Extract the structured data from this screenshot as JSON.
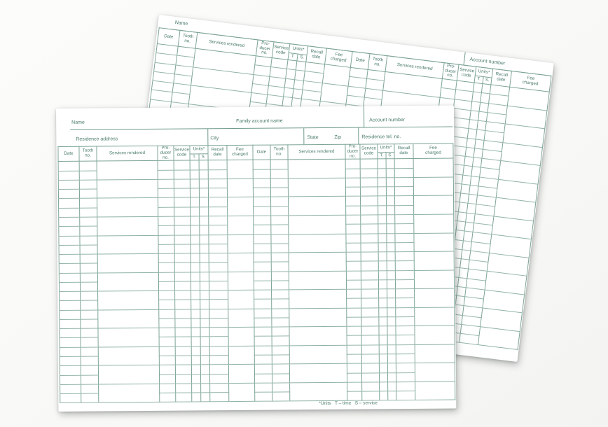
{
  "colors": {
    "card": "#ffffff",
    "grid_line": "#7da496",
    "row_line": "#95b6aa",
    "text": "#497a6c",
    "page_background": "#f8f8f6"
  },
  "front_card": {
    "name_label": "Name",
    "family_account_label": "Family account name",
    "account_number_label": "Account number",
    "residence_address_label": "Residence address",
    "city_label": "City",
    "state_label": "State",
    "zip_label": "Zip",
    "residence_tel_label": "Residence tel. no.",
    "footnote": "*Units   T – time   S – service",
    "body_rows": 26
  },
  "back_card": {
    "name_label": "Name",
    "account_number_label": "Account number",
    "body_rows": 28
  },
  "table": {
    "units_header": "Units*",
    "columns": [
      {
        "key": "date",
        "lines": [
          "Date"
        ]
      },
      {
        "key": "tooth-no",
        "lines": [
          "Tooth",
          "no."
        ]
      },
      {
        "key": "services-rendered",
        "lines": [
          "Services rendered"
        ],
        "tall": true
      },
      {
        "key": "producer-no",
        "lines": [
          "Pro-",
          "ducer",
          "no."
        ]
      },
      {
        "key": "service-code",
        "lines": [
          "Service",
          "code"
        ]
      },
      {
        "key": "units-t",
        "lines": [
          "T."
        ],
        "units": true
      },
      {
        "key": "units-s",
        "lines": [
          "S."
        ],
        "units": true
      },
      {
        "key": "recall-date",
        "lines": [
          "Recall",
          "date"
        ]
      },
      {
        "key": "fee-charged",
        "lines": [
          "Fee",
          "charged"
        ],
        "tall": true
      }
    ],
    "half_widths": [
      [
        30,
        25,
        87,
        23,
        23,
        13,
        13,
        27,
        37
      ],
      [
        25,
        25,
        82,
        21,
        25,
        12,
        12,
        27,
        57
      ]
    ]
  }
}
